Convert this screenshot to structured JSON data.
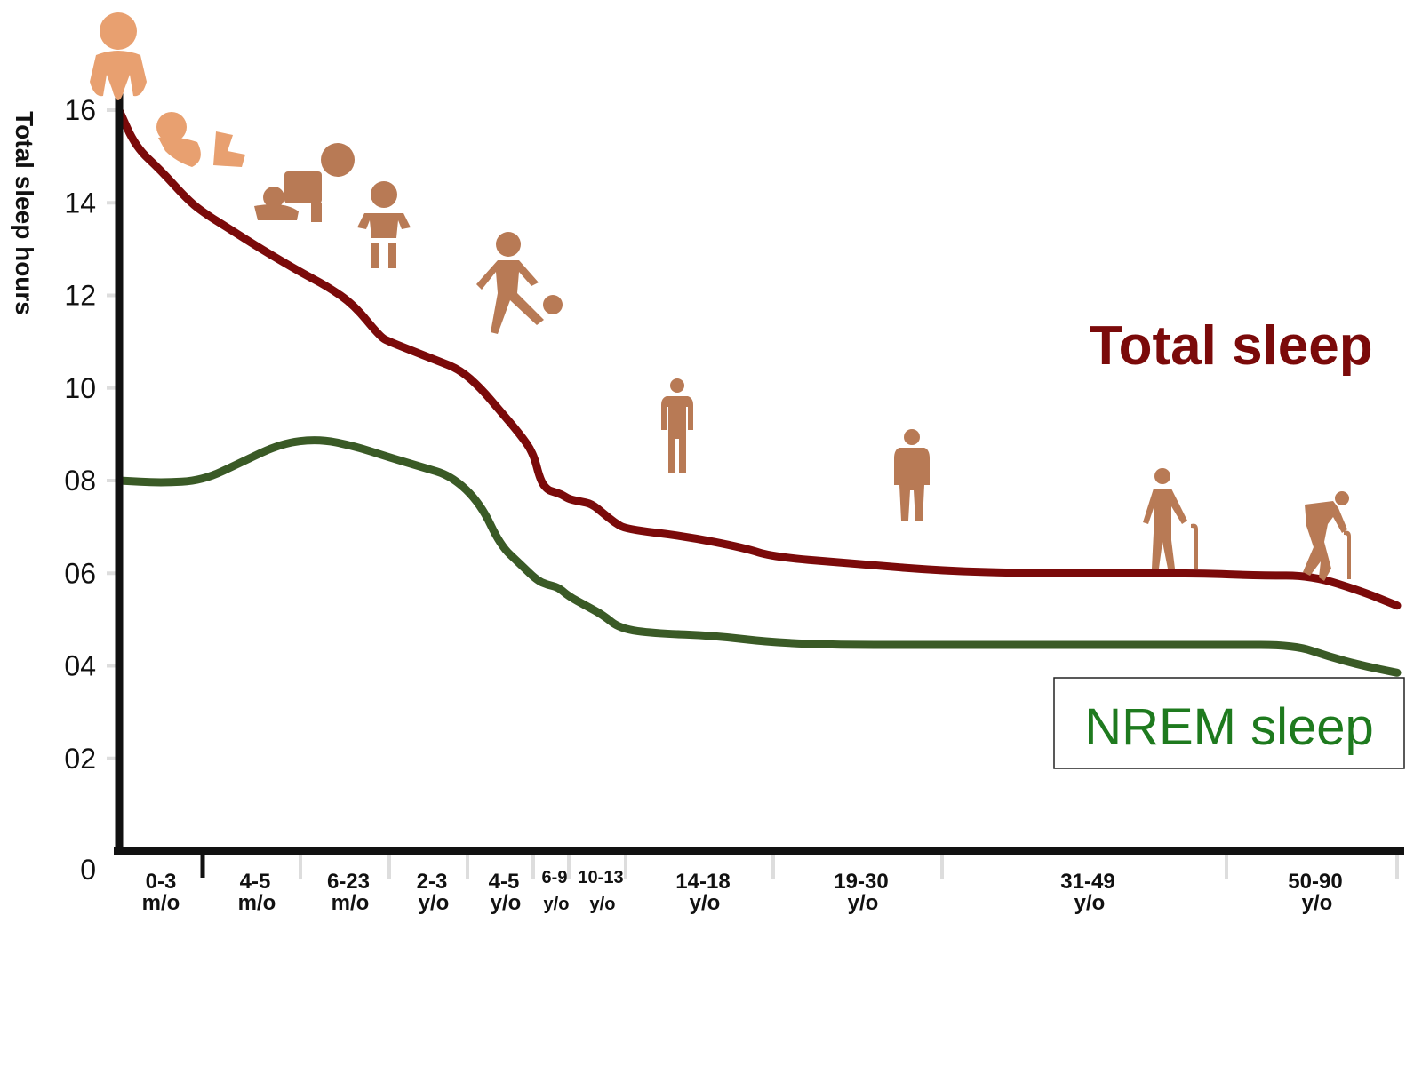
{
  "chart_data": {
    "type": "line",
    "ylabel": "Total sleep hours",
    "xlabel": "",
    "ylim": [
      0,
      17
    ],
    "y_ticks": [
      "0",
      "02",
      "04",
      "06",
      "08",
      "10",
      "12",
      "14",
      "16"
    ],
    "categories": [
      {
        "top": "0-3",
        "bottom": "m/o"
      },
      {
        "top": "4-5",
        "bottom": "m/o"
      },
      {
        "top": "6-23",
        "bottom": "m/o"
      },
      {
        "top": "2-3",
        "bottom": "y/o"
      },
      {
        "top": "4-5",
        "bottom": "y/o"
      },
      {
        "top": "6-9",
        "bottom": "y/o"
      },
      {
        "top": "10-13",
        "bottom": "y/o"
      },
      {
        "top": "14-18",
        "bottom": "y/o"
      },
      {
        "top": "19-30",
        "bottom": "y/o"
      },
      {
        "top": "31-49",
        "bottom": "y/o"
      },
      {
        "top": "50-90",
        "bottom": "y/o"
      }
    ],
    "series": [
      {
        "name": "Total sleep",
        "color": "#7b0a0a",
        "x": [
          0,
          0.2,
          0.5,
          0.8,
          1.0,
          1.3,
          1.6,
          2.0,
          2.3,
          2.6,
          2.9,
          3.0,
          3.3,
          3.6,
          3.9,
          4.2,
          4.5,
          4.8,
          5.0,
          5.2,
          5.4,
          5.6,
          5.8,
          6.0,
          6.2,
          6.4,
          6.6,
          6.8,
          7.0,
          7.4,
          7.8,
          8.0,
          8.5,
          9.0,
          9.3,
          9.6,
          9.9,
          10.2,
          10.5,
          10.8,
          11.0
        ],
        "values": [
          16.0,
          15.2,
          14.7,
          14.1,
          13.8,
          13.4,
          13.0,
          12.5,
          12.2,
          11.8,
          11.1,
          11.0,
          10.8,
          10.6,
          10.4,
          10.0,
          9.5,
          9.0,
          8.6,
          8.0,
          7.8,
          7.75,
          7.7,
          7.6,
          7.55,
          7.5,
          7.3,
          7.1,
          6.95,
          6.8,
          6.55,
          6.35,
          6.2,
          6.05,
          6.0,
          6.0,
          6.0,
          5.95,
          5.95,
          5.6,
          5.3
        ]
      },
      {
        "name": "NREM sleep",
        "color": "#3a5a26",
        "x": [
          0,
          0.5,
          1.0,
          1.4,
          1.8,
          2.2,
          2.6,
          3.0,
          3.4,
          3.8,
          4.2,
          4.5,
          4.8,
          5.1,
          5.4,
          5.7,
          6.0,
          6.3,
          6.6,
          6.9,
          7.2,
          7.6,
          8.0,
          8.4,
          8.8,
          9.2,
          9.6,
          10.0,
          10.4,
          10.6,
          10.8,
          11.0
        ],
        "values": [
          8.0,
          7.95,
          8.0,
          8.4,
          8.8,
          8.9,
          8.75,
          8.5,
          8.3,
          8.1,
          7.5,
          6.6,
          6.2,
          5.85,
          5.75,
          5.7,
          5.5,
          5.3,
          5.1,
          4.8,
          4.7,
          4.65,
          4.5,
          4.45,
          4.45,
          4.45,
          4.45,
          4.45,
          4.45,
          4.2,
          4.0,
          3.85
        ]
      }
    ],
    "legend": {
      "placement": "right",
      "total_label": "Total sleep",
      "nrem_label": "NREM sleep"
    },
    "grid": false
  },
  "icons": [
    "newborn-icon",
    "fetal-infant-icon",
    "crawling-baby-icon",
    "toddler-icon",
    "child-kicking-ball-icon",
    "teen-icon",
    "adult-icon",
    "senior-with-cane-icon",
    "elderly-with-cane-icon"
  ],
  "colors": {
    "total": "#7b0a0a",
    "nrem": "#3a5a26",
    "nrem_label": "#1e7a1e",
    "icon_light": "#e8a070",
    "icon_dark": "#b87a55",
    "axis": "#111111"
  }
}
